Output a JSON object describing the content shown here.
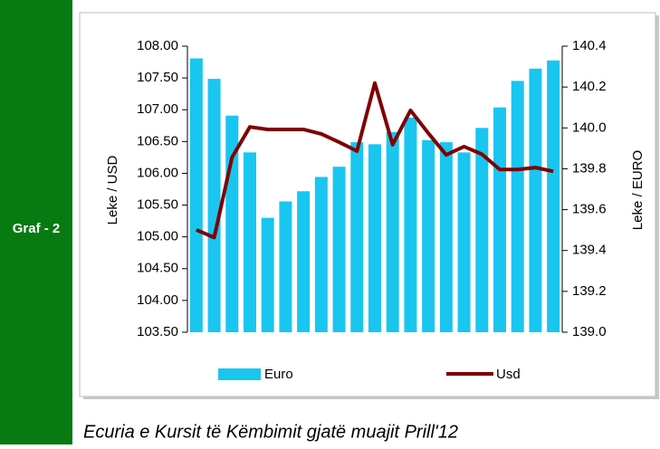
{
  "sidebar_label": "Graf - 2",
  "caption": "Ecuria e Kursit të Këmbimit gjatë muajit Prill'12",
  "chart_data": {
    "type": "bar_line",
    "y_label": "Leke / USD",
    "y2_label": "Leke / EURO",
    "ylim": [
      103.5,
      108
    ],
    "yticks": [
      {
        "value": 103.5,
        "label": "103.50"
      },
      {
        "value": 104,
        "label": "104.00"
      },
      {
        "value": 104.5,
        "label": "104.50"
      },
      {
        "value": 105,
        "label": "105.00"
      },
      {
        "value": 105.5,
        "label": "105.50"
      },
      {
        "value": 106,
        "label": "106.00"
      },
      {
        "value": 106.5,
        "label": "106.50"
      },
      {
        "value": 107,
        "label": "107.00"
      },
      {
        "value": 107.5,
        "label": "107.50"
      },
      {
        "value": 108,
        "label": "108.00"
      }
    ],
    "y2lim": [
      139,
      140.4
    ],
    "y2ticks": [
      {
        "value": 139,
        "label": "139.0"
      },
      139.2,
      139.4,
      139.6,
      139.8,
      {
        "value": 140,
        "label": "140.0"
      },
      140.2,
      140.4
    ],
    "series": [
      {
        "name": "Euro",
        "kind": "bar",
        "axis": "y2",
        "color": "#19c6f0",
        "values": [
          140.34,
          140.24,
          140.06,
          139.88,
          139.56,
          139.64,
          139.69,
          139.76,
          139.81,
          139.93,
          139.92,
          139.98,
          140.05,
          139.94,
          139.93,
          139.88,
          140.0,
          140.1,
          140.23,
          140.29,
          140.33
        ]
      },
      {
        "name": "Usd",
        "kind": "line",
        "axis": "y",
        "color": "#7f0000",
        "values": [
          105.11,
          104.99,
          106.25,
          106.73,
          106.69,
          106.69,
          106.69,
          106.62,
          106.49,
          106.35,
          107.42,
          106.45,
          106.99,
          106.63,
          106.29,
          106.42,
          106.3,
          106.06,
          106.06,
          106.09,
          106.03
        ]
      }
    ]
  }
}
